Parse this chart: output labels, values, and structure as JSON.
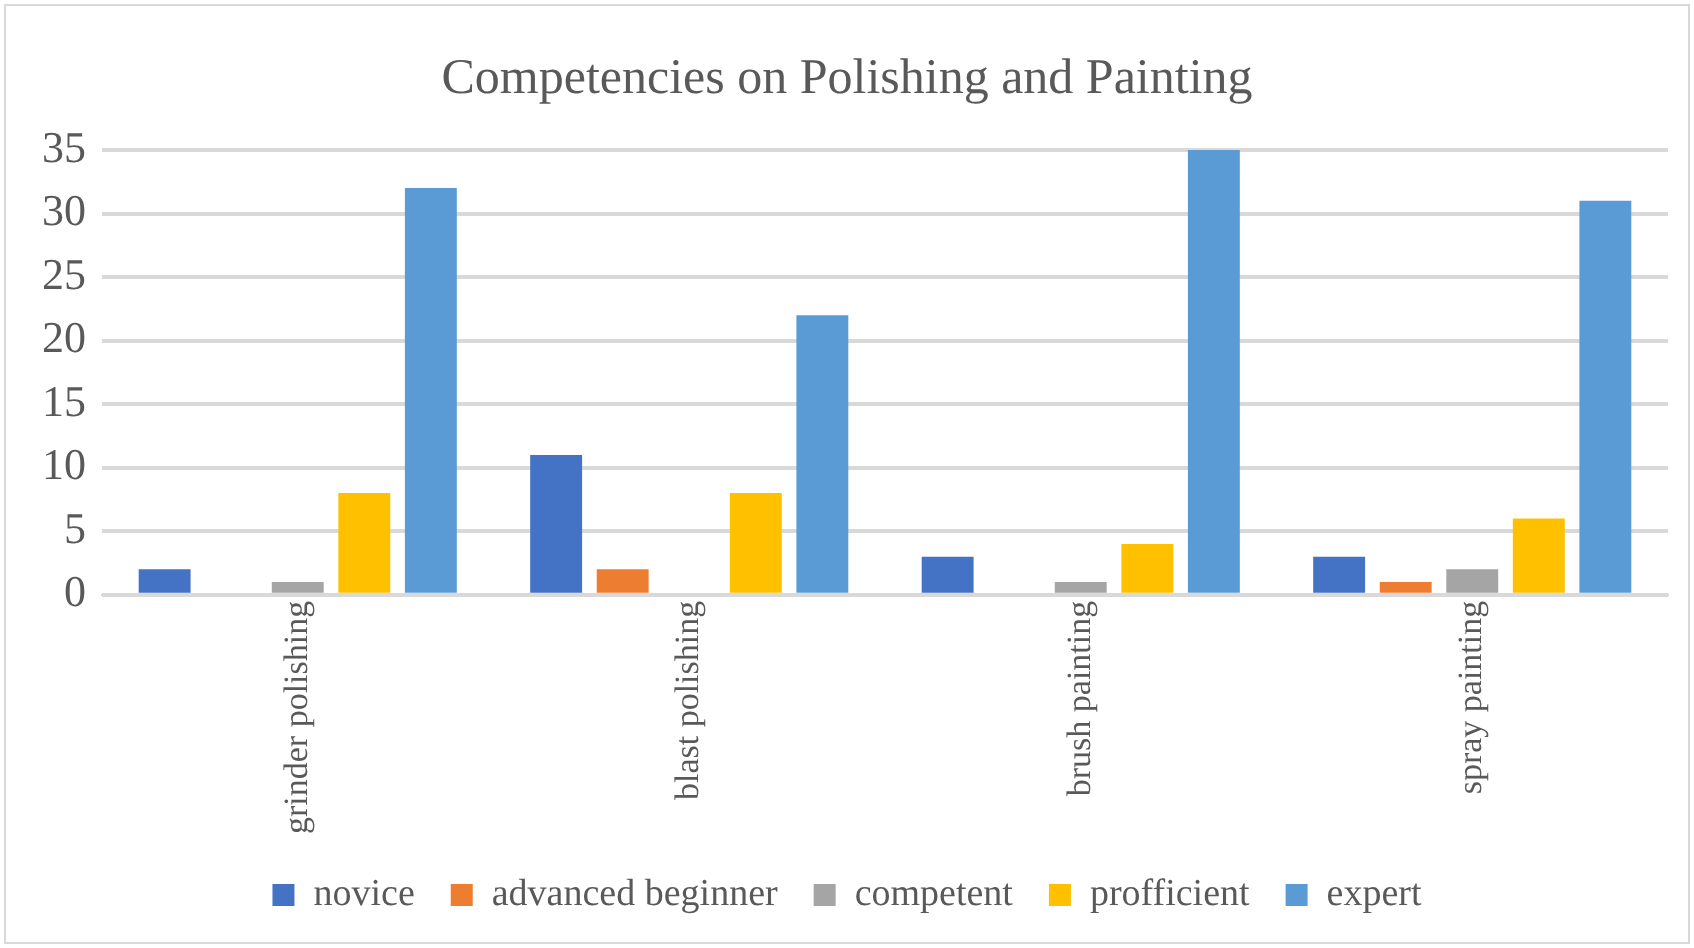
{
  "chart_data": {
    "type": "bar",
    "title": "Competencies on Polishing and Painting",
    "categories": [
      "grinder polishing",
      "blast polishing",
      "brush painting",
      "spray painting"
    ],
    "series": [
      {
        "name": "novice",
        "color": "#4472c4",
        "values": [
          2,
          11,
          3,
          3
        ]
      },
      {
        "name": "advanced beginner",
        "color": "#ed7d31",
        "values": [
          0,
          2,
          0,
          1
        ]
      },
      {
        "name": "competent",
        "color": "#a5a5a5",
        "values": [
          1,
          0,
          1,
          2
        ]
      },
      {
        "name": "profficient",
        "color": "#ffc000",
        "values": [
          8,
          8,
          4,
          6
        ]
      },
      {
        "name": "expert",
        "color": "#5b9bd5",
        "values": [
          32,
          22,
          35,
          31
        ]
      }
    ],
    "ylim": [
      0,
      35
    ],
    "yticks": [
      0,
      5,
      10,
      15,
      20,
      25,
      30,
      35
    ],
    "grid": "y",
    "legend": "bottom"
  }
}
